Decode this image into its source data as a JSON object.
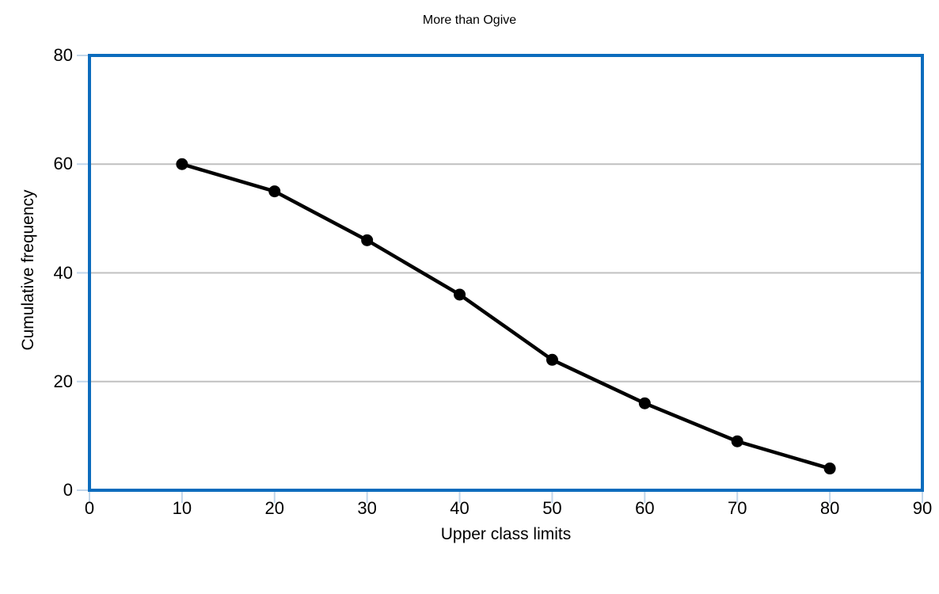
{
  "chart_data": {
    "type": "line",
    "title": "More than Ogive",
    "xlabel": "Upper class limits",
    "ylabel": "Cumulative frequency",
    "x": [
      10,
      20,
      30,
      40,
      50,
      60,
      70,
      80
    ],
    "values": [
      60,
      55,
      46,
      36,
      24,
      16,
      9,
      4
    ],
    "xlim": [
      0,
      90
    ],
    "ylim": [
      0,
      80
    ],
    "x_ticks": [
      0,
      10,
      20,
      30,
      40,
      50,
      60,
      70,
      80,
      90
    ],
    "y_ticks": [
      0,
      20,
      40,
      60,
      80
    ],
    "grid": "horizontal-only",
    "legend": "none",
    "marker_shape": "circle",
    "colors": {
      "plot_border": "#0c6cbd",
      "gridline": "#c0c0c0",
      "tick_mark": "#c2d6ea",
      "series_line": "#000000",
      "marker_fill": "#000000",
      "text": "#000000",
      "background": "#ffffff"
    }
  }
}
